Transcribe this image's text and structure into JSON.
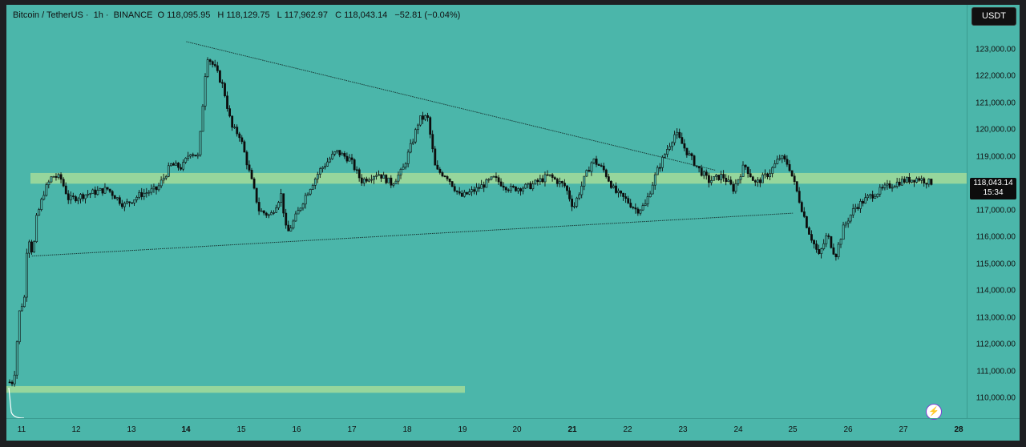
{
  "legend": {
    "symbol": "Bitcoin / TetherUS",
    "interval": "1h",
    "exchange": "BINANCE",
    "open_label": "O",
    "open": "118,095.95",
    "high_label": "H",
    "high": "118,129.75",
    "low_label": "L",
    "low": "117,962.97",
    "close_label": "C",
    "close": "118,043.14",
    "change": "−52.81 (−0.04%)"
  },
  "currency": "USDT",
  "current_price": "118,043.14",
  "countdown": "15:34",
  "price_labels": [
    "123,000.00",
    "122,000.00",
    "121,000.00",
    "120,000.00",
    "119,000.00",
    "118,000.00",
    "117,000.00",
    "116,000.00",
    "115,000.00",
    "114,000.00",
    "113,000.00",
    "112,000.00",
    "111,000.00",
    "110,000.00"
  ],
  "time_labels": [
    "11",
    "12",
    "13",
    "14",
    "15",
    "16",
    "17",
    "18",
    "19",
    "20",
    "21",
    "22",
    "23",
    "24",
    "25",
    "26",
    "27",
    "28"
  ],
  "colors": {
    "background": "#4bb6aa",
    "candles": "#0d0d0d",
    "zone": "#a3dc9a",
    "trendline": "#1a3b38"
  },
  "icons": {
    "flash": "flash-icon"
  },
  "chart_data": {
    "type": "candlestick",
    "ylim": [
      109500,
      123600
    ],
    "x_days": [
      "11",
      "12",
      "13",
      "14",
      "15",
      "16",
      "17",
      "18",
      "19",
      "20",
      "21",
      "22",
      "23",
      "24",
      "25",
      "26",
      "27",
      "28"
    ],
    "path": [
      [
        10.9,
        110600
      ],
      [
        11.0,
        113200
      ],
      [
        11.1,
        113800
      ],
      [
        11.15,
        116200
      ],
      [
        11.25,
        115300
      ],
      [
        11.3,
        116600
      ],
      [
        11.45,
        117700
      ],
      [
        11.6,
        118300
      ],
      [
        11.75,
        118200
      ],
      [
        11.9,
        117400
      ],
      [
        12.2,
        117600
      ],
      [
        12.6,
        117800
      ],
      [
        12.9,
        117200
      ],
      [
        13.2,
        117600
      ],
      [
        13.5,
        117800
      ],
      [
        13.75,
        118700
      ],
      [
        13.95,
        118600
      ],
      [
        14.1,
        119200
      ],
      [
        14.25,
        119000
      ],
      [
        14.4,
        122800
      ],
      [
        14.55,
        122300
      ],
      [
        14.7,
        121600
      ],
      [
        14.85,
        120100
      ],
      [
        15.0,
        119800
      ],
      [
        15.15,
        118600
      ],
      [
        15.35,
        117000
      ],
      [
        15.55,
        116800
      ],
      [
        15.75,
        117600
      ],
      [
        15.85,
        116100
      ],
      [
        16.0,
        116700
      ],
      [
        16.2,
        117600
      ],
      [
        16.45,
        118500
      ],
      [
        16.75,
        119200
      ],
      [
        17.0,
        118900
      ],
      [
        17.2,
        118100
      ],
      [
        17.5,
        118400
      ],
      [
        17.75,
        118000
      ],
      [
        17.95,
        118500
      ],
      [
        18.15,
        119700
      ],
      [
        18.25,
        120400
      ],
      [
        18.4,
        120500
      ],
      [
        18.55,
        118500
      ],
      [
        18.75,
        118300
      ],
      [
        19.0,
        117500
      ],
      [
        19.3,
        117800
      ],
      [
        19.6,
        118200
      ],
      [
        19.9,
        117800
      ],
      [
        20.25,
        117900
      ],
      [
        20.6,
        118300
      ],
      [
        20.9,
        117900
      ],
      [
        21.05,
        117100
      ],
      [
        21.25,
        118200
      ],
      [
        21.4,
        118900
      ],
      [
        21.6,
        118500
      ],
      [
        21.8,
        117700
      ],
      [
        22.0,
        117400
      ],
      [
        22.2,
        117000
      ],
      [
        22.35,
        117200
      ],
      [
        22.55,
        118400
      ],
      [
        22.75,
        119300
      ],
      [
        22.9,
        119900
      ],
      [
        23.1,
        119200
      ],
      [
        23.3,
        118600
      ],
      [
        23.5,
        118100
      ],
      [
        23.75,
        118300
      ],
      [
        23.95,
        117800
      ],
      [
        24.15,
        118700
      ],
      [
        24.35,
        118000
      ],
      [
        24.6,
        118400
      ],
      [
        24.8,
        119000
      ],
      [
        24.95,
        118700
      ],
      [
        25.1,
        117700
      ],
      [
        25.3,
        116300
      ],
      [
        25.5,
        115300
      ],
      [
        25.65,
        116100
      ],
      [
        25.8,
        115300
      ],
      [
        25.95,
        116400
      ],
      [
        26.15,
        117100
      ],
      [
        26.4,
        117500
      ],
      [
        26.75,
        117900
      ],
      [
        27.0,
        118100
      ],
      [
        27.3,
        118200
      ],
      [
        27.5,
        118050
      ]
    ],
    "support_zone": [
      118000,
      118400
    ],
    "lower_zone": [
      110200,
      110450
    ],
    "trendlines": [
      {
        "from": [
          "14.0",
          123300
        ],
        "to": [
          "23.6",
          118500
        ]
      },
      {
        "from": [
          "11.2",
          115300
        ],
        "to": [
          "25.0",
          116900
        ]
      }
    ]
  }
}
